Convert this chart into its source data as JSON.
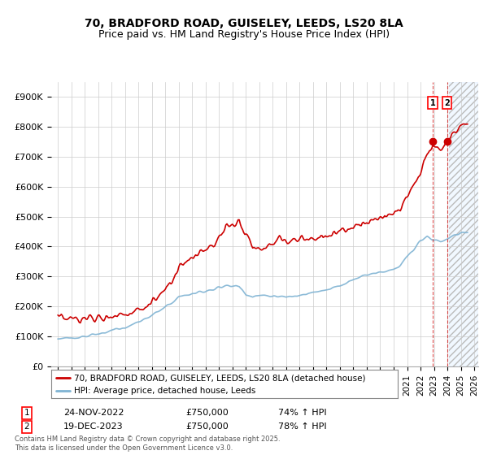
{
  "title_line1": "70, BRADFORD ROAD, GUISELEY, LEEDS, LS20 8LA",
  "title_line2": "Price paid vs. HM Land Registry's House Price Index (HPI)",
  "background_color": "#ffffff",
  "grid_color": "#cccccc",
  "hpi_color": "#7fb3d3",
  "price_color": "#cc0000",
  "sale1_date": "24-NOV-2022",
  "sale1_price": "£750,000",
  "sale1_hpi": "74% ↑ HPI",
  "sale2_date": "19-DEC-2023",
  "sale2_price": "£750,000",
  "sale2_hpi": "78% ↑ HPI",
  "legend_label1": "70, BRADFORD ROAD, GUISELEY, LEEDS, LS20 8LA (detached house)",
  "legend_label2": "HPI: Average price, detached house, Leeds",
  "footer": "Contains HM Land Registry data © Crown copyright and database right 2025.\nThis data is licensed under the Open Government Licence v3.0.",
  "yticks": [
    0,
    100000,
    200000,
    300000,
    400000,
    500000,
    600000,
    700000,
    800000,
    900000
  ],
  "ytick_labels": [
    "£0",
    "£100K",
    "£200K",
    "£300K",
    "£400K",
    "£500K",
    "£600K",
    "£700K",
    "£800K",
    "£900K"
  ],
  "sale1_year": 2022.9,
  "sale2_year": 2023.97,
  "hatch_start": 2024.1,
  "xlim_left": 1994.5,
  "xlim_right": 2026.3,
  "ylim_top": 950000
}
